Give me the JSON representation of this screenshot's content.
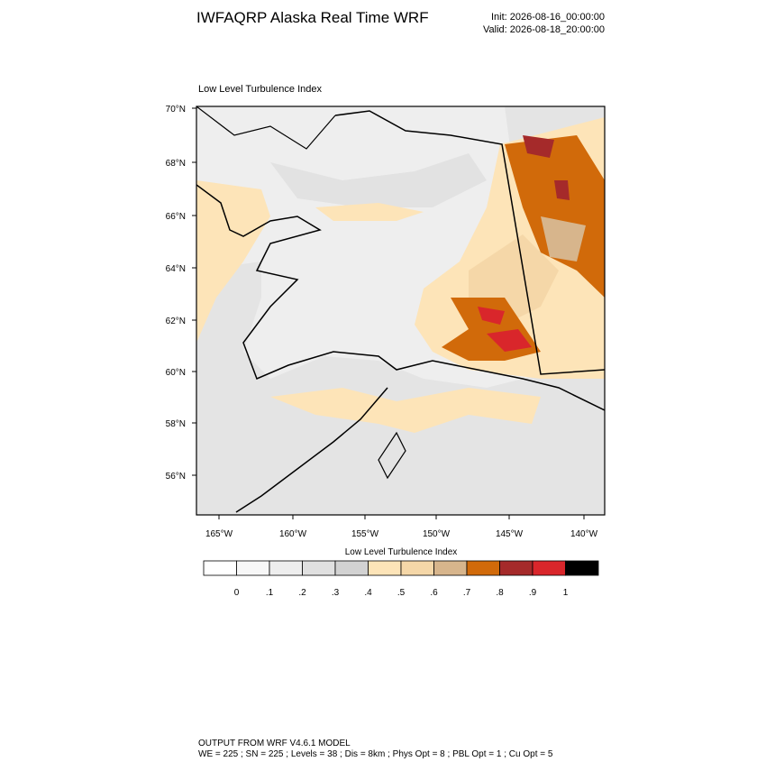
{
  "header": {
    "title": "IWFAQRP Alaska Real Time WRF",
    "init": "Init: 2026-08-16_00:00:00",
    "valid": "Valid: 2026-08-18_20:00:00"
  },
  "map": {
    "title": "Low Level Turbulence Index",
    "lat_labels": [
      "70°N",
      "68°N",
      "66°N",
      "64°N",
      "62°N",
      "60°N",
      "58°N",
      "56°N"
    ],
    "lon_labels": [
      "165°W",
      "160°W",
      "155°W",
      "150°W",
      "145°W",
      "140°W"
    ]
  },
  "colorbar": {
    "title": "Low Level Turbulence Index",
    "colors": [
      "#ffffff",
      "#f7f7f7",
      "#eeeeee",
      "#e0e0e0",
      "#d2d2d2",
      "#fde4b8",
      "#f5d7a8",
      "#d7b58c",
      "#d16a0a",
      "#a52a2a",
      "#d9262b",
      "#000000"
    ],
    "labels": [
      "0",
      ".1",
      ".2",
      ".3",
      ".4",
      ".5",
      ".6",
      ".7",
      ".8",
      ".9",
      "1"
    ]
  },
  "footer": {
    "line1": "OUTPUT FROM WRF V4.6.1 MODEL",
    "line2": "WE = 225 ; SN = 225 ; Levels = 38 ; Dis = 8km ; Phys Opt = 8 ; PBL Opt = 1 ; Cu Opt = 5"
  }
}
